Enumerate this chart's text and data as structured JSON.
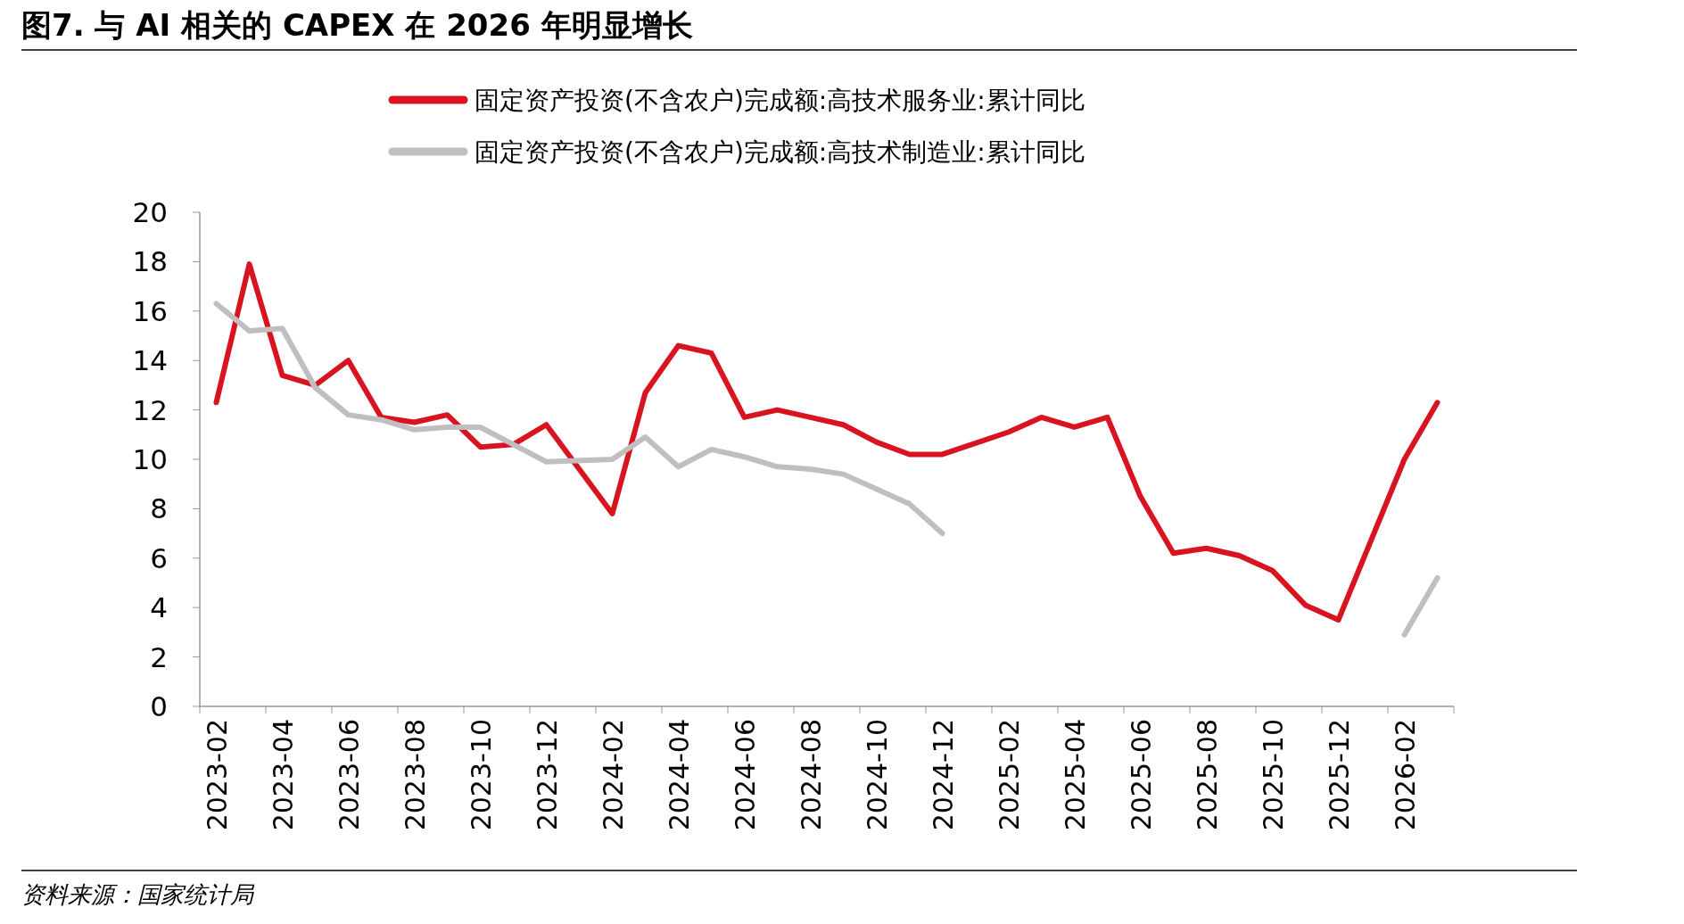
{
  "chart_data": {
    "type": "line",
    "title": "图7. 与 AI 相关的 CAPEX 在 2026 年明显增长",
    "categories": [
      "2023-02",
      null,
      "2023-04",
      null,
      "2023-06",
      null,
      "2023-08",
      null,
      "2023-10",
      null,
      "2023-12",
      null,
      "2024-02",
      null,
      "2024-04",
      null,
      "2024-06",
      null,
      "2024-08",
      null,
      "2024-10",
      null,
      "2024-12",
      null,
      "2025-02",
      null,
      "2025-04",
      null,
      "2025-06",
      null,
      "2025-08",
      null,
      "2025-10",
      null,
      "2025-12",
      null,
      "2026-02",
      null
    ],
    "series": [
      {
        "name": "固定资产投资(不含农户)完成额:高技术服务业:累计同比",
        "color": "#d7141f",
        "values": [
          12.3,
          17.9,
          13.4,
          13.0,
          14.0,
          11.7,
          11.5,
          11.8,
          10.5,
          10.6,
          11.4,
          null,
          7.8,
          12.7,
          14.6,
          14.3,
          11.7,
          12.0,
          11.7,
          11.4,
          10.7,
          10.2,
          10.2,
          null,
          11.1,
          11.7,
          11.3,
          11.7,
          8.5,
          6.2,
          6.4,
          6.1,
          5.5,
          4.1,
          3.5,
          null,
          10.0,
          12.3
        ]
      },
      {
        "name": "固定资产投资(不含农户)完成额:高技术制造业:累计同比",
        "color": "#bfbfbf",
        "values": [
          16.3,
          15.2,
          15.3,
          12.9,
          11.8,
          11.6,
          11.2,
          11.3,
          11.3,
          10.6,
          9.9,
          null,
          10.0,
          10.9,
          9.7,
          10.4,
          10.1,
          9.7,
          9.6,
          9.4,
          8.8,
          8.2,
          7.0,
          null,
          null,
          null,
          null,
          null,
          null,
          null,
          null,
          null,
          null,
          null,
          null,
          null,
          2.9,
          5.2
        ]
      }
    ],
    "ylim": [
      0,
      20
    ],
    "yticks": [
      0,
      2,
      4,
      6,
      8,
      10,
      12,
      14,
      16,
      18,
      20
    ],
    "grid": false,
    "legend": "top",
    "marker": "none",
    "line_style": "solid",
    "annotations": [
      "资料来源：国家统计局"
    ]
  }
}
